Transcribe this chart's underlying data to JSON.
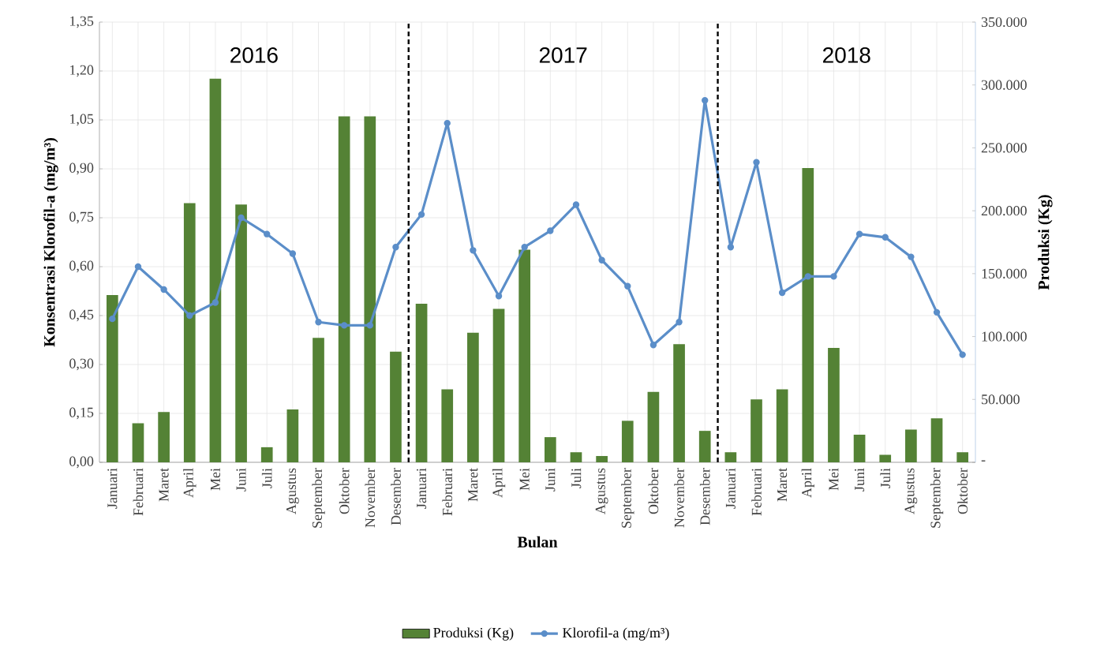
{
  "chart_data": {
    "type": "bar",
    "xlabel": "Bulan",
    "ylabel": "Konsentrasi Klorofil-a (mg/m³)",
    "y2label": "Produksi (Kg)",
    "categories": [
      "Januari",
      "Februari",
      "Maret",
      "April",
      "Mei",
      "Juni",
      "Juli",
      "Agustus",
      "September",
      "Oktober",
      "November",
      "Desember",
      "Januari",
      "Februari",
      "Maret",
      "April",
      "Mei",
      "Juni",
      "Juli",
      "Agustus",
      "September",
      "Oktober",
      "November",
      "Desember",
      "Januari",
      "Februari",
      "Maret",
      "April",
      "Mei",
      "Juni",
      "Juli",
      "Agustus",
      "September",
      "Oktober"
    ],
    "series": [
      {
        "name": "Produksi (Kg)",
        "axis": "y2",
        "color": "#548235",
        "values": [
          133000,
          31000,
          40000,
          206000,
          305000,
          205000,
          12000,
          42000,
          99000,
          275000,
          275000,
          88000,
          126000,
          58000,
          103000,
          122000,
          169000,
          20000,
          8000,
          5000,
          33000,
          56000,
          94000,
          25000,
          8000,
          50000,
          58000,
          234000,
          91000,
          22000,
          6000,
          26000,
          35000,
          8000
        ]
      },
      {
        "name": "Klorofil-a (mg/m³)",
        "type": "line",
        "color": "#5b8ec9",
        "marker": "circle",
        "values": [
          0.44,
          0.6,
          0.53,
          0.45,
          0.49,
          0.75,
          0.7,
          0.64,
          0.43,
          0.42,
          0.42,
          0.66,
          0.76,
          1.04,
          0.65,
          0.51,
          0.66,
          0.71,
          0.79,
          0.62,
          0.54,
          0.36,
          0.43,
          1.11,
          0.66,
          0.92,
          0.52,
          0.57,
          0.57,
          0.7,
          0.69,
          0.63,
          0.46,
          0.33
        ]
      }
    ],
    "ylim": [
      0,
      1.35
    ],
    "yticks": [
      {
        "value": 0,
        "label": "0,00"
      },
      {
        "value": 0.15,
        "label": "0,15"
      },
      {
        "value": 0.3,
        "label": "0,30"
      },
      {
        "value": 0.45,
        "label": "0,45"
      },
      {
        "value": 0.6,
        "label": "0,60"
      },
      {
        "value": 0.75,
        "label": "0,75"
      },
      {
        "value": 0.9,
        "label": "0,90"
      },
      {
        "value": 1.05,
        "label": "1,05"
      },
      {
        "value": 1.2,
        "label": "1,20"
      },
      {
        "value": 1.35,
        "label": "1,35"
      }
    ],
    "y2lim": [
      0,
      350000
    ],
    "y2ticks": [
      {
        "value": 0,
        "label": "-"
      },
      {
        "value": 50000,
        "label": "50.000"
      },
      {
        "value": 100000,
        "label": "100.000"
      },
      {
        "value": 150000,
        "label": "150.000"
      },
      {
        "value": 200000,
        "label": "200.000"
      },
      {
        "value": 250000,
        "label": "250.000"
      },
      {
        "value": 300000,
        "label": "300.000"
      },
      {
        "value": 350000,
        "label": "350.000"
      }
    ],
    "annotations": [
      "2016",
      "2017",
      "2018"
    ],
    "grid": true,
    "legend": "bottom"
  }
}
